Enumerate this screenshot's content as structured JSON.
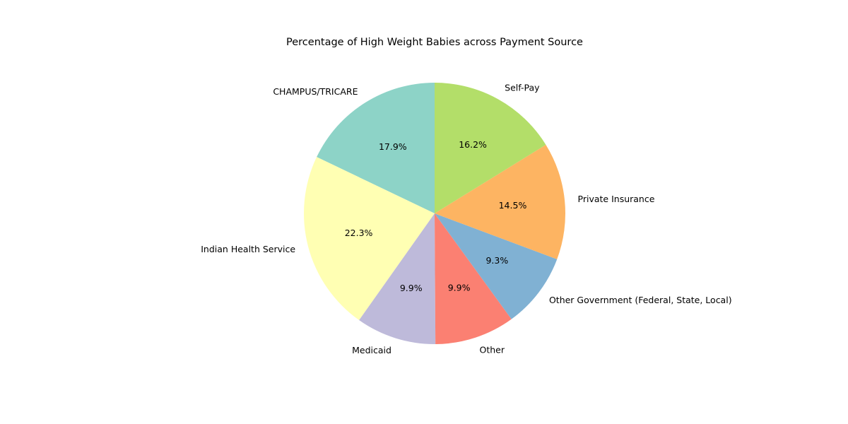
{
  "chart_data": {
    "type": "pie",
    "title": "Percentage of High Weight Babies across Payment Source",
    "categories": [
      "CHAMPUS/TRICARE",
      "Indian Health Service",
      "Medicaid",
      "Other",
      "Other Government (Federal, State, Local)",
      "Private Insurance",
      "Self-Pay"
    ],
    "values": [
      17.9,
      22.3,
      9.9,
      9.9,
      9.3,
      14.5,
      16.2
    ],
    "value_labels": [
      "17.9%",
      "22.3%",
      "9.9%",
      "9.9%",
      "9.3%",
      "14.5%",
      "16.2%"
    ],
    "colors": [
      "#8dd3c7",
      "#ffffb3",
      "#bebada",
      "#fb8072",
      "#80b1d3",
      "#fdb462",
      "#b3de69"
    ],
    "start_angle_deg": 90,
    "direction": "counterclockwise",
    "legend": "none"
  }
}
